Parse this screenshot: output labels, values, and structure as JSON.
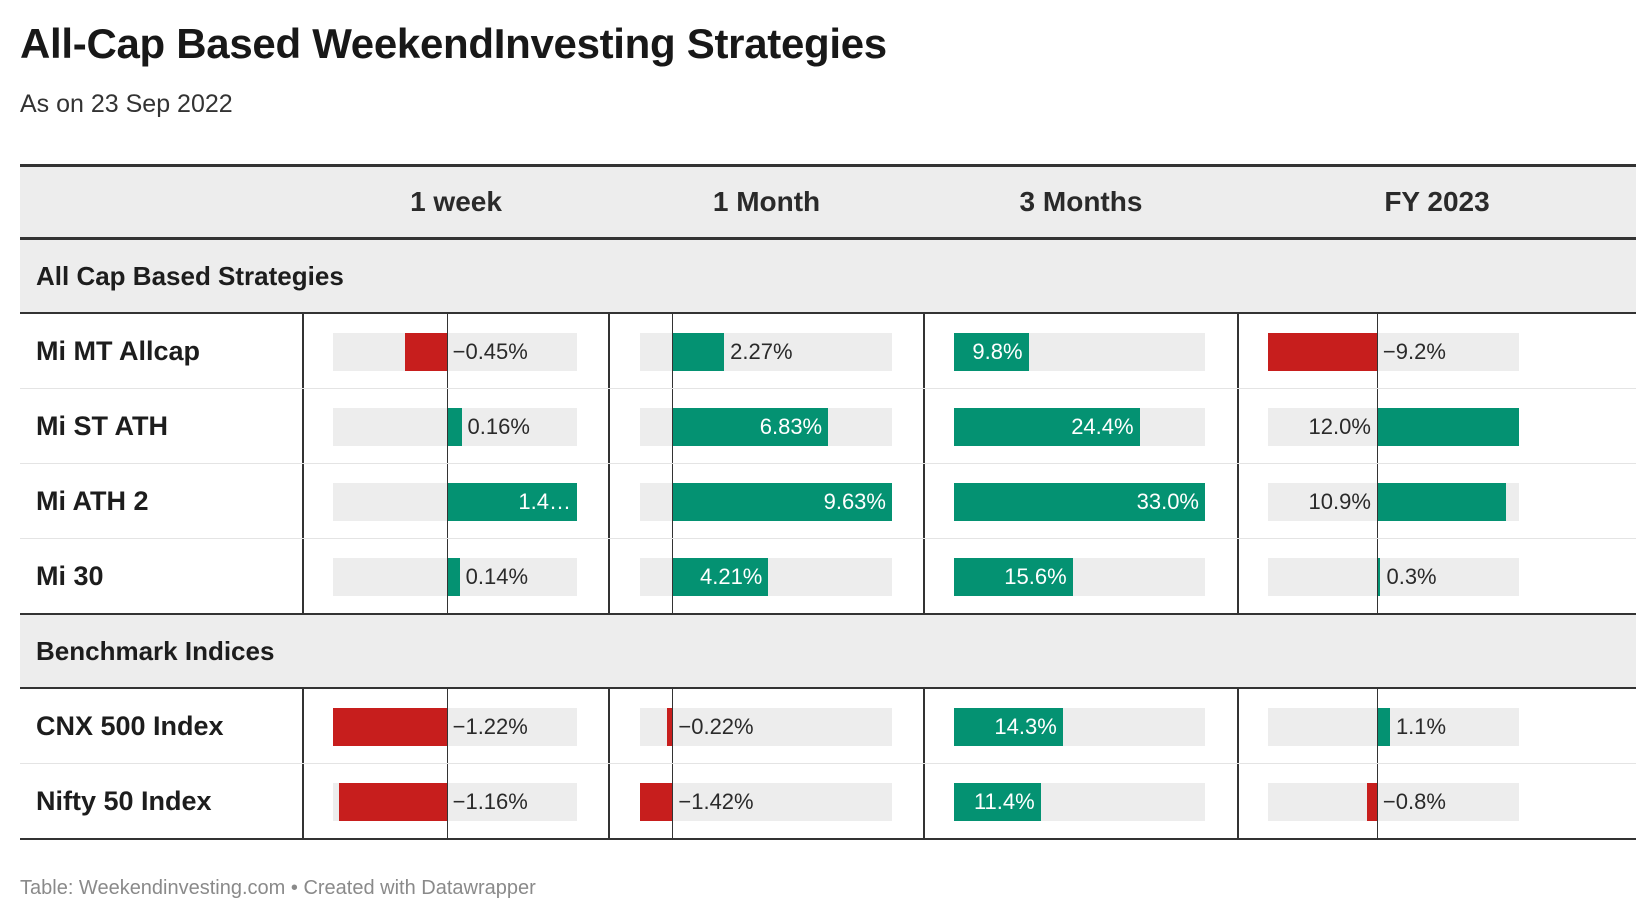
{
  "title": "All-Cap Based WeekendInvesting Strategies",
  "subtitle": "As on 23 Sep 2022",
  "footer": "Table: Weekendinvesting.com • Created with Datawrapper",
  "colors": {
    "positive": "#049272",
    "negative": "#c71e1d",
    "track": "#ededed"
  },
  "columns": [
    "1 week",
    "1 Month",
    "3 Months",
    "FY 2023"
  ],
  "chart_data": {
    "type": "table",
    "columns": [
      "1 week",
      "1 Month",
      "3 Months",
      "FY 2023"
    ],
    "groups": [
      {
        "name": "All Cap Based Strategies",
        "rows": [
          {
            "name": "Mi MT Allcap",
            "values": [
              -0.45,
              2.27,
              9.8,
              -9.2
            ],
            "labels": [
              "−0.45%",
              "2.27%",
              "9.8%",
              "−9.2%"
            ]
          },
          {
            "name": "Mi ST ATH",
            "values": [
              0.16,
              6.83,
              24.4,
              12.0
            ],
            "labels": [
              "0.16%",
              "6.83%",
              "24.4%",
              "12.0%"
            ]
          },
          {
            "name": "Mi ATH 2",
            "values": [
              1.4,
              9.63,
              33.0,
              10.9
            ],
            "labels": [
              "1.4…",
              "9.63%",
              "33.0%",
              "10.9%"
            ]
          },
          {
            "name": "Mi 30",
            "values": [
              0.14,
              4.21,
              15.6,
              0.3
            ],
            "labels": [
              "0.14%",
              "4.21%",
              "15.6%",
              "0.3%"
            ]
          }
        ]
      },
      {
        "name": "Benchmark Indices",
        "rows": [
          {
            "name": "CNX 500 Index",
            "values": [
              -1.22,
              -0.22,
              14.3,
              1.1
            ],
            "labels": [
              "−1.22%",
              "−0.22%",
              "14.3%",
              "1.1%"
            ]
          },
          {
            "name": "Nifty 50 Index",
            "values": [
              -1.16,
              -1.42,
              11.4,
              -0.8
            ],
            "labels": [
              "−1.16%",
              "−1.42%",
              "11.4%",
              "−0.8%"
            ]
          }
        ]
      }
    ],
    "column_ranges": [
      [
        -1.22,
        1.4
      ],
      [
        -1.42,
        9.63
      ],
      [
        0,
        33.0
      ],
      [
        -9.2,
        12.0
      ]
    ]
  }
}
